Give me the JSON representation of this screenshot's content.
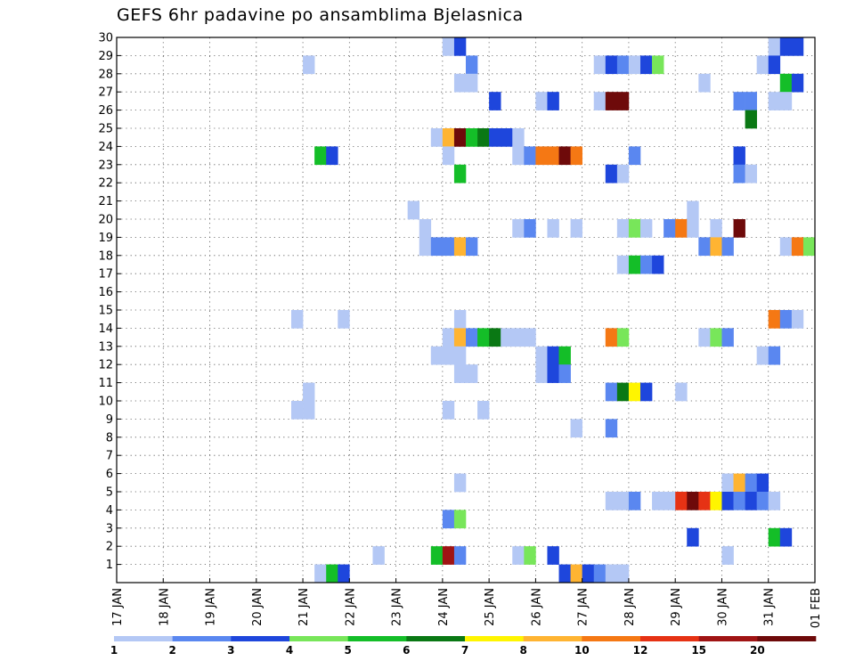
{
  "chart_data": {
    "type": "heatmap",
    "title": "GEFS 6hr padavine po ansamblima Bjelasnica",
    "xlabel": "",
    "ylabel": "",
    "x_tick_labels": [
      "17 JAN",
      "18 JAN",
      "19 JAN",
      "20 JAN",
      "21 JAN",
      "22 JAN",
      "23 JAN",
      "24 JAN",
      "25 JAN",
      "26 JAN",
      "27 JAN",
      "28 JAN",
      "29 JAN",
      "30 JAN",
      "31 JAN",
      "01 FEB"
    ],
    "y_tick_labels": [
      "1",
      "2",
      "3",
      "4",
      "5",
      "6",
      "7",
      "8",
      "9",
      "10",
      "11",
      "12",
      "13",
      "14",
      "15",
      "16",
      "17",
      "18",
      "19",
      "20",
      "21",
      "22",
      "23",
      "24",
      "25",
      "26",
      "27",
      "28",
      "29",
      "30"
    ],
    "x_unit": "6-hour step from 17 JAN 00Z",
    "x_range": [
      0,
      60
    ],
    "y_range": [
      0,
      30
    ],
    "grid": true,
    "colorbar": {
      "labels": [
        "1",
        "2",
        "3",
        "4",
        "5",
        "6",
        "7",
        "8",
        "10",
        "12",
        "15",
        "20"
      ],
      "colors": [
        "#b4c8f5",
        "#5a87f0",
        "#1e46dc",
        "#78e65a",
        "#14be28",
        "#0a7814",
        "#fff500",
        "#ffb432",
        "#f57814",
        "#e63214",
        "#a01414",
        "#6e0a0a"
      ]
    },
    "cells": [
      [
        29,
        30,
        1
      ],
      [
        30,
        30,
        3
      ],
      [
        57,
        30,
        1
      ],
      [
        58,
        30,
        3
      ],
      [
        59,
        30,
        3
      ],
      [
        17,
        29,
        1
      ],
      [
        31,
        29,
        2
      ],
      [
        42,
        29,
        1
      ],
      [
        43,
        29,
        3
      ],
      [
        44,
        29,
        2
      ],
      [
        45,
        29,
        1
      ],
      [
        46,
        29,
        3
      ],
      [
        47,
        29,
        4
      ],
      [
        56,
        29,
        1
      ],
      [
        57,
        29,
        3
      ],
      [
        30,
        28,
        1
      ],
      [
        31,
        28,
        1
      ],
      [
        51,
        28,
        1
      ],
      [
        58,
        28,
        5
      ],
      [
        59,
        28,
        3
      ],
      [
        33,
        27,
        3
      ],
      [
        37,
        27,
        1
      ],
      [
        38,
        27,
        3
      ],
      [
        42,
        27,
        1
      ],
      [
        43,
        27,
        12
      ],
      [
        44,
        27,
        12
      ],
      [
        54,
        27,
        2
      ],
      [
        55,
        27,
        2
      ],
      [
        57,
        27,
        1
      ],
      [
        58,
        27,
        1
      ],
      [
        55,
        26,
        6
      ],
      [
        28,
        25,
        1
      ],
      [
        29,
        25,
        8
      ],
      [
        30,
        25,
        12
      ],
      [
        31,
        25,
        5
      ],
      [
        32,
        25,
        6
      ],
      [
        33,
        25,
        3
      ],
      [
        34,
        25,
        3
      ],
      [
        35,
        25,
        1
      ],
      [
        18,
        24,
        5
      ],
      [
        19,
        24,
        3
      ],
      [
        29,
        24,
        1
      ],
      [
        35,
        24,
        1
      ],
      [
        36,
        24,
        2
      ],
      [
        37,
        24,
        9
      ],
      [
        38,
        24,
        9
      ],
      [
        39,
        24,
        12
      ],
      [
        40,
        24,
        9
      ],
      [
        45,
        24,
        2
      ],
      [
        54,
        24,
        3
      ],
      [
        30,
        23,
        5
      ],
      [
        43,
        23,
        3
      ],
      [
        44,
        23,
        1
      ],
      [
        54,
        23,
        2
      ],
      [
        55,
        23,
        1
      ],
      [
        26,
        21,
        1
      ],
      [
        50,
        21,
        1
      ],
      [
        27,
        20,
        1
      ],
      [
        35,
        20,
        1
      ],
      [
        36,
        20,
        2
      ],
      [
        38,
        20,
        1
      ],
      [
        40,
        20,
        1
      ],
      [
        44,
        20,
        1
      ],
      [
        45,
        20,
        4
      ],
      [
        46,
        20,
        1
      ],
      [
        48,
        20,
        2
      ],
      [
        49,
        20,
        9
      ],
      [
        50,
        20,
        1
      ],
      [
        52,
        20,
        1
      ],
      [
        54,
        20,
        12
      ],
      [
        27,
        19,
        1
      ],
      [
        28,
        19,
        2
      ],
      [
        29,
        19,
        2
      ],
      [
        30,
        19,
        8
      ],
      [
        31,
        19,
        2
      ],
      [
        51,
        19,
        2
      ],
      [
        52,
        19,
        8
      ],
      [
        53,
        19,
        2
      ],
      [
        58,
        19,
        1
      ],
      [
        59,
        19,
        9
      ],
      [
        60,
        19,
        4
      ],
      [
        44,
        18,
        1
      ],
      [
        45,
        18,
        5
      ],
      [
        46,
        18,
        2
      ],
      [
        47,
        18,
        3
      ],
      [
        16,
        15,
        1
      ],
      [
        20,
        15,
        1
      ],
      [
        30,
        15,
        1
      ],
      [
        57,
        15,
        9
      ],
      [
        58,
        15,
        2
      ],
      [
        59,
        15,
        1
      ],
      [
        29,
        14,
        1
      ],
      [
        30,
        14,
        8
      ],
      [
        31,
        14,
        2
      ],
      [
        32,
        14,
        5
      ],
      [
        33,
        14,
        6
      ],
      [
        34,
        14,
        1
      ],
      [
        35,
        14,
        1
      ],
      [
        36,
        14,
        1
      ],
      [
        43,
        14,
        9
      ],
      [
        44,
        14,
        4
      ],
      [
        51,
        14,
        1
      ],
      [
        52,
        14,
        4
      ],
      [
        53,
        14,
        2
      ],
      [
        28,
        13,
        1
      ],
      [
        29,
        13,
        1
      ],
      [
        30,
        13,
        1
      ],
      [
        37,
        13,
        1
      ],
      [
        38,
        13,
        3
      ],
      [
        39,
        13,
        5
      ],
      [
        56,
        13,
        1
      ],
      [
        57,
        13,
        2
      ],
      [
        30,
        12,
        1
      ],
      [
        31,
        12,
        1
      ],
      [
        37,
        12,
        1
      ],
      [
        38,
        12,
        3
      ],
      [
        39,
        12,
        2
      ],
      [
        17,
        11,
        1
      ],
      [
        43,
        11,
        2
      ],
      [
        44,
        11,
        6
      ],
      [
        45,
        11,
        7
      ],
      [
        46,
        11,
        3
      ],
      [
        49,
        11,
        1
      ],
      [
        16,
        10,
        1
      ],
      [
        17,
        10,
        1
      ],
      [
        29,
        10,
        1
      ],
      [
        32,
        10,
        1
      ],
      [
        40,
        9,
        1
      ],
      [
        43,
        9,
        2
      ],
      [
        30,
        6,
        1
      ],
      [
        53,
        6,
        1
      ],
      [
        54,
        6,
        8
      ],
      [
        55,
        6,
        2
      ],
      [
        56,
        6,
        3
      ],
      [
        43,
        5,
        1
      ],
      [
        44,
        5,
        1
      ],
      [
        45,
        5,
        2
      ],
      [
        47,
        5,
        1
      ],
      [
        48,
        5,
        1
      ],
      [
        49,
        5,
        10
      ],
      [
        50,
        5,
        12
      ],
      [
        51,
        5,
        10
      ],
      [
        52,
        5,
        7
      ],
      [
        53,
        5,
        3
      ],
      [
        54,
        5,
        2
      ],
      [
        55,
        5,
        3
      ],
      [
        56,
        5,
        2
      ],
      [
        57,
        5,
        1
      ],
      [
        29,
        4,
        2
      ],
      [
        30,
        4,
        4
      ],
      [
        50,
        3,
        3
      ],
      [
        57,
        3,
        5
      ],
      [
        58,
        3,
        3
      ],
      [
        23,
        2,
        1
      ],
      [
        28,
        2,
        5
      ],
      [
        29,
        2,
        11
      ],
      [
        30,
        2,
        2
      ],
      [
        35,
        2,
        1
      ],
      [
        36,
        2,
        4
      ],
      [
        38,
        2,
        3
      ],
      [
        53,
        2,
        1
      ],
      [
        18,
        1,
        1
      ],
      [
        19,
        1,
        5
      ],
      [
        20,
        1,
        3
      ],
      [
        39,
        1,
        3
      ],
      [
        40,
        1,
        8
      ],
      [
        41,
        1,
        3
      ],
      [
        42,
        1,
        2
      ],
      [
        43,
        1,
        1
      ],
      [
        44,
        1,
        1
      ]
    ]
  }
}
